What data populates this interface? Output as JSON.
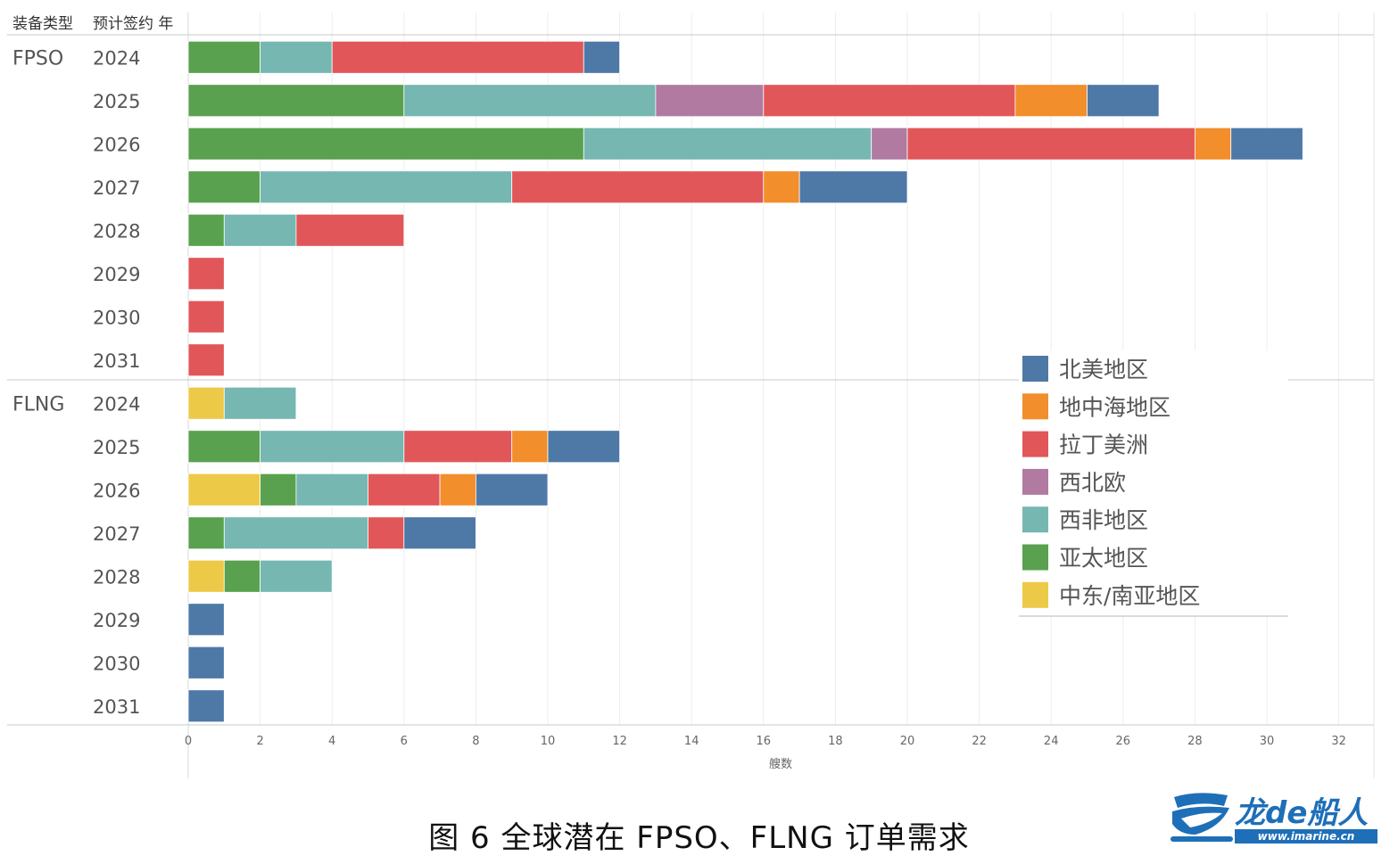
{
  "chart_data": {
    "type": "bar",
    "orientation": "horizontal",
    "stacked": true,
    "header": {
      "group_col": "装备类型",
      "year_col": "预计签约 年"
    },
    "xlabel": "艘数",
    "xlim": [
      0,
      32
    ],
    "xticks": [
      0,
      2,
      4,
      6,
      8,
      10,
      12,
      14,
      16,
      18,
      20,
      22,
      24,
      26,
      28,
      30,
      32
    ],
    "grid": true,
    "legend_position": "right",
    "stack_order": [
      "中东/南亚地区",
      "亚太地区",
      "西非地区",
      "西北欧",
      "拉丁美洲",
      "地中海地区",
      "北美地区"
    ],
    "legend": [
      {
        "name": "北美地区",
        "color": "#4e79a7"
      },
      {
        "name": "地中海地区",
        "color": "#f28e2b"
      },
      {
        "name": "拉丁美洲",
        "color": "#e15759"
      },
      {
        "name": "西北欧",
        "color": "#b07aa1"
      },
      {
        "name": "西非地区",
        "color": "#76b7b2"
      },
      {
        "name": "亚太地区",
        "color": "#59a14f"
      },
      {
        "name": "中东/南亚地区",
        "color": "#edc948"
      }
    ],
    "groups": [
      {
        "name": "FPSO",
        "rows": [
          {
            "year": "2024",
            "values": {
              "亚太地区": 2,
              "西非地区": 2,
              "拉丁美洲": 7,
              "北美地区": 1
            }
          },
          {
            "year": "2025",
            "values": {
              "亚太地区": 6,
              "西非地区": 7,
              "西北欧": 3,
              "拉丁美洲": 7,
              "地中海地区": 2,
              "北美地区": 2
            }
          },
          {
            "year": "2026",
            "values": {
              "亚太地区": 11,
              "西非地区": 8,
              "西北欧": 1,
              "拉丁美洲": 8,
              "地中海地区": 1,
              "北美地区": 2
            }
          },
          {
            "year": "2027",
            "values": {
              "亚太地区": 2,
              "西非地区": 7,
              "拉丁美洲": 7,
              "地中海地区": 1,
              "北美地区": 3
            }
          },
          {
            "year": "2028",
            "values": {
              "亚太地区": 1,
              "西非地区": 2,
              "拉丁美洲": 3
            }
          },
          {
            "year": "2029",
            "values": {
              "拉丁美洲": 1
            }
          },
          {
            "year": "2030",
            "values": {
              "拉丁美洲": 1
            }
          },
          {
            "year": "2031",
            "values": {
              "拉丁美洲": 1
            }
          }
        ]
      },
      {
        "name": "FLNG",
        "rows": [
          {
            "year": "2024",
            "values": {
              "中东/南亚地区": 1,
              "西非地区": 2
            }
          },
          {
            "year": "2025",
            "values": {
              "亚太地区": 2,
              "西非地区": 4,
              "拉丁美洲": 3,
              "地中海地区": 1,
              "北美地区": 2
            }
          },
          {
            "year": "2026",
            "values": {
              "中东/南亚地区": 2,
              "亚太地区": 1,
              "西非地区": 2,
              "拉丁美洲": 2,
              "地中海地区": 1,
              "北美地区": 2
            }
          },
          {
            "year": "2027",
            "values": {
              "亚太地区": 1,
              "西非地区": 4,
              "拉丁美洲": 1,
              "北美地区": 2
            }
          },
          {
            "year": "2028",
            "values": {
              "中东/南亚地区": 1,
              "亚太地区": 1,
              "西非地区": 2
            }
          },
          {
            "year": "2029",
            "values": {
              "北美地区": 1
            }
          },
          {
            "year": "2030",
            "values": {
              "北美地区": 1
            }
          },
          {
            "year": "2031",
            "values": {
              "北美地区": 1
            }
          }
        ]
      }
    ]
  },
  "caption": "图  6  全球潜在 FPSO、FLNG 订单需求",
  "logo": {
    "name": "龙de船人",
    "site": "www.imarine.cn",
    "color": "#1e6fb8"
  }
}
